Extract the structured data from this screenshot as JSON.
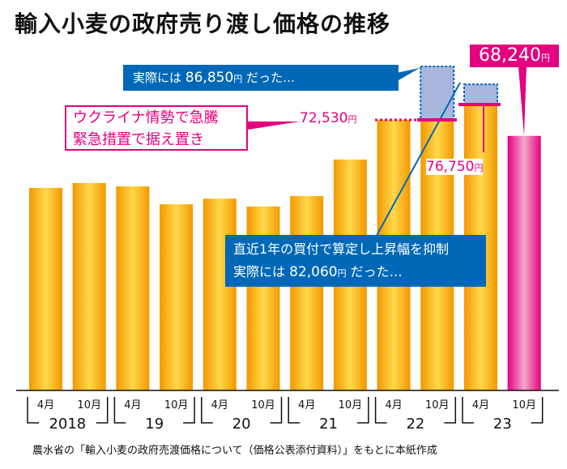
{
  "chart_data": {
    "type": "bar",
    "title": "輸入小麦の政府売り渡し価格の推移",
    "categories": [
      "2018年4月",
      "2018年10月",
      "2019年4月",
      "2019年10月",
      "2020年4月",
      "2020年10月",
      "2021年4月",
      "2021年10月",
      "2022年4月",
      "2022年10月",
      "2023年4月",
      "2023年10月"
    ],
    "month_labels": [
      "4月",
      "10月",
      "4月",
      "10月",
      "4月",
      "10月",
      "4月",
      "10月",
      "4月",
      "10月",
      "4月",
      "10月"
    ],
    "year_labels": [
      "2018",
      "19",
      "20",
      "21",
      "22",
      "23"
    ],
    "values": [
      54300,
      55600,
      54700,
      49900,
      51400,
      49300,
      52100,
      61900,
      72530,
      72530,
      76750,
      68240
    ],
    "hypothetical_values": {
      "2022年10月": 86850,
      "2023年4月": 82060
    },
    "ylim": [
      0,
      90000
    ],
    "grid": false,
    "colors": {
      "bar": "#F39800",
      "bar_highlight": "#FFD84A",
      "latest_bar": "#E4007F",
      "hypothetical": "#A9B7DF",
      "callout_blue": "#0068B7",
      "accent_pink": "#E4007F"
    },
    "annotations": {
      "freeze_line1": "ウクライナ情勢で急騰",
      "freeze_line2": "緊急措置で据え置き",
      "actual1_prefix": "実際には ",
      "actual1_value": "86,850",
      "actual1_suffix": " だった…",
      "calc_line1": "直近1年の買付で算定し上昇幅を抑制",
      "actual2_prefix": "実際には ",
      "actual2_value": "82,060",
      "actual2_suffix": " だった…",
      "label_72530": "72,530",
      "label_76750": "76,750",
      "label_68240": "68,240",
      "yen": "円"
    },
    "source": "農水省の「輸入小麦の政府売渡価格について（価格公表添付資料）」をもとに本紙作成"
  }
}
